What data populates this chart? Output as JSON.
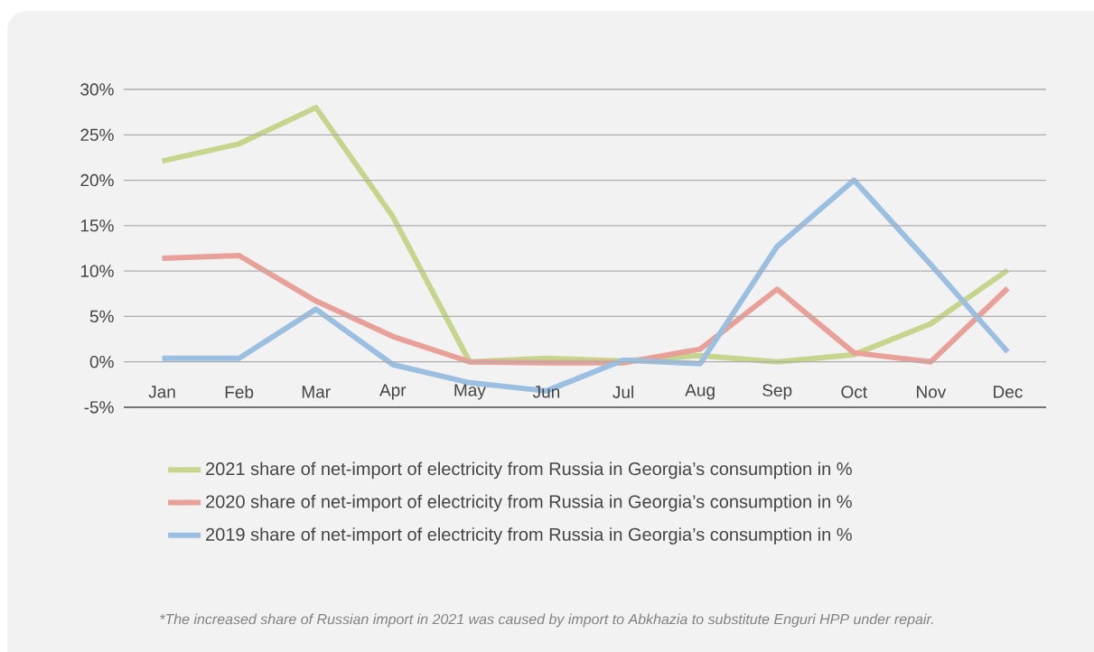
{
  "chart_data": {
    "type": "line",
    "categories": [
      "Jan",
      "Feb",
      "Mar",
      "Apr",
      "May",
      "Jun",
      "Jul",
      "Aug",
      "Sep",
      "Oct",
      "Nov",
      "Dec"
    ],
    "series": [
      {
        "name": "2021 share of net-import of electricity from Russia in Georgia’s consumption in %",
        "color": "#c5d58c",
        "values": [
          22.1,
          24,
          28,
          16,
          0,
          0.4,
          0.1,
          0.7,
          0,
          0.8,
          4.2,
          10.1
        ]
      },
      {
        "name": "2020 share of net-import of electricity from Russia in Georgia’s consumption in %",
        "color": "#e8a098",
        "values": [
          11.4,
          11.7,
          6.7,
          2.8,
          0,
          -0.1,
          -0.1,
          1.4,
          8,
          1,
          0,
          8.1
        ]
      },
      {
        "name": "2019 share of net-import of electricity from Russia in Georgia’s consumption in %",
        "color": "#9bbfe0",
        "values": [
          0.4,
          0.4,
          5.8,
          -0.3,
          -2.3,
          -3.2,
          0.2,
          -0.2,
          12.7,
          20,
          10.7,
          1.1
        ]
      }
    ],
    "ylim": [
      -5,
      30
    ],
    "yticks": [
      {
        "value": -5,
        "label": "-5%"
      },
      {
        "value": 0,
        "label": "0%"
      },
      {
        "value": 5,
        "label": "5%"
      },
      {
        "value": 10,
        "label": "10%"
      },
      {
        "value": 15,
        "label": "15%"
      },
      {
        "value": 20,
        "label": "20%"
      },
      {
        "value": 25,
        "label": "25%"
      },
      {
        "value": 30,
        "label": "30%"
      }
    ],
    "grid": "y",
    "legend": "bottom",
    "marker": "none",
    "line_style": "solid",
    "annotations": [
      "*The increased share of Russian import in 2021 was caused by import to Abkhazia to substitute Enguri HPP under repair."
    ]
  }
}
